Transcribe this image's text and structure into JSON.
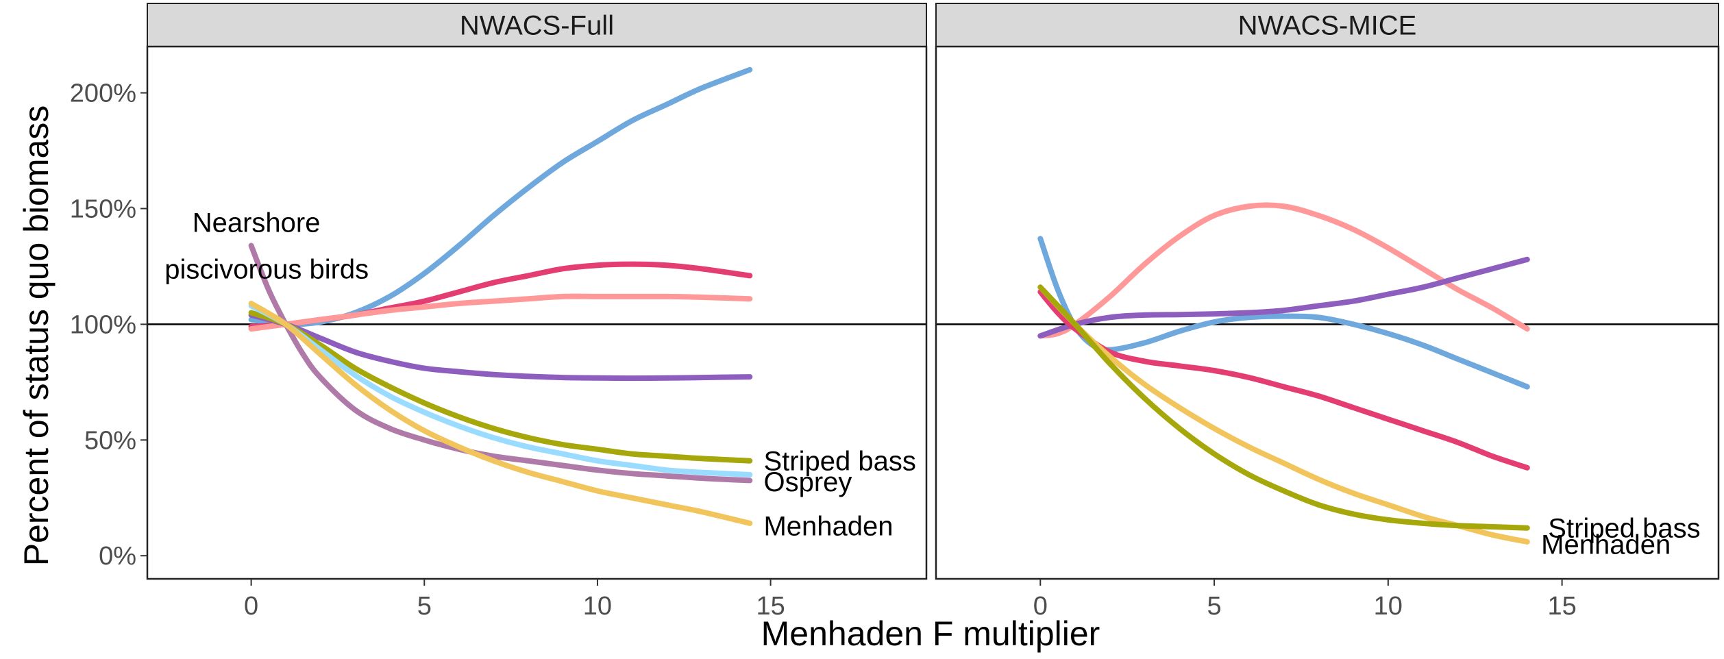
{
  "chart_data": {
    "type": "line",
    "xlabel": "Menhaden F multiplier",
    "ylabel": "Percent of status quo biomass",
    "xlim": [
      -3,
      19.5
    ],
    "ylim": [
      -0.1,
      2.2
    ],
    "x_ticks": [
      0,
      5,
      10,
      15
    ],
    "x_tick_labels": [
      "0",
      "5",
      "10",
      "15"
    ],
    "y_ticks": [
      0,
      0.5,
      1.0,
      1.5,
      2.0
    ],
    "y_tick_labels": [
      "0%",
      "50%",
      "100%",
      "150%",
      "200%"
    ],
    "reference_line_y": 1.0,
    "panels": [
      {
        "title": "NWACS-Full",
        "series": [
          {
            "color": "#6fa8dc",
            "x": [
              0,
              1,
              2,
              3,
              4,
              5,
              6,
              7,
              8,
              9,
              10,
              11,
              12,
              13,
              14.4
            ],
            "y": [
              1.02,
              1.0,
              1.01,
              1.05,
              1.12,
              1.22,
              1.34,
              1.47,
              1.59,
              1.7,
              1.79,
              1.88,
              1.95,
              2.02,
              2.1
            ]
          },
          {
            "color": "#e33d72",
            "x": [
              0,
              1,
              2,
              3,
              4,
              5,
              6,
              7,
              8,
              9,
              10,
              11,
              12,
              13,
              14.4
            ],
            "y": [
              0.99,
              1.0,
              1.02,
              1.04,
              1.07,
              1.1,
              1.14,
              1.18,
              1.21,
              1.24,
              1.255,
              1.26,
              1.255,
              1.24,
              1.21
            ]
          },
          {
            "color": "#ff9999",
            "x": [
              0,
              1,
              2,
              3,
              4,
              5,
              6,
              7,
              8,
              9,
              10,
              11,
              12,
              13,
              14.4
            ],
            "y": [
              0.98,
              1.0,
              1.02,
              1.04,
              1.06,
              1.075,
              1.09,
              1.1,
              1.11,
              1.12,
              1.12,
              1.12,
              1.12,
              1.117,
              1.11
            ]
          },
          {
            "color": "#8e5ebf",
            "x": [
              0,
              1,
              2,
              3,
              4,
              5,
              6,
              7,
              8,
              9,
              10,
              11,
              12,
              13,
              14.4
            ],
            "y": [
              1.04,
              1.0,
              0.94,
              0.88,
              0.84,
              0.81,
              0.795,
              0.783,
              0.775,
              0.77,
              0.768,
              0.767,
              0.768,
              0.77,
              0.773
            ]
          },
          {
            "color": "#a6a70a",
            "x": [
              0,
              1,
              2,
              3,
              4,
              5,
              6,
              7,
              8,
              9,
              10,
              11,
              12,
              13,
              14.4
            ],
            "y": [
              1.05,
              1.0,
              0.91,
              0.81,
              0.73,
              0.66,
              0.6,
              0.55,
              0.51,
              0.48,
              0.46,
              0.44,
              0.43,
              0.42,
              0.41
            ]
          },
          {
            "color": "#99dcff",
            "x": [
              0,
              1,
              2,
              3,
              4,
              5,
              6,
              7,
              8,
              9,
              10,
              11,
              12,
              13,
              14.4
            ],
            "y": [
              1.08,
              1.0,
              0.89,
              0.78,
              0.69,
              0.62,
              0.56,
              0.51,
              0.47,
              0.44,
              0.41,
              0.39,
              0.37,
              0.36,
              0.35
            ]
          },
          {
            "color": "#b07aa8",
            "x": [
              0,
              0.5,
              1,
              1.5,
              2,
              3,
              4,
              5,
              6,
              7,
              8,
              9,
              10,
              11,
              12,
              13,
              14.4
            ],
            "y": [
              1.34,
              1.15,
              1.0,
              0.87,
              0.77,
              0.63,
              0.55,
              0.5,
              0.46,
              0.43,
              0.41,
              0.39,
              0.37,
              0.355,
              0.345,
              0.335,
              0.325
            ]
          },
          {
            "color": "#f2c45c",
            "x": [
              0,
              1,
              2,
              3,
              4,
              5,
              6,
              7,
              8,
              9,
              10,
              11,
              12,
              13,
              14.4
            ],
            "y": [
              1.09,
              1.0,
              0.87,
              0.74,
              0.63,
              0.54,
              0.47,
              0.41,
              0.36,
              0.32,
              0.28,
              0.25,
              0.22,
              0.19,
              0.14
            ]
          }
        ],
        "labels": [
          {
            "text": "Nearshore",
            "x": -1.7,
            "y": 1.44
          },
          {
            "text": "piscivorous birds",
            "x": -2.5,
            "y": 1.24
          },
          {
            "text": "Striped bass",
            "x": 14.8,
            "y": 0.41
          },
          {
            "text": "Osprey",
            "x": 14.8,
            "y": 0.32
          },
          {
            "text": "Menhaden",
            "x": 14.8,
            "y": 0.13
          }
        ]
      },
      {
        "title": "NWACS-MICE",
        "series": [
          {
            "color": "#6fa8dc",
            "x": [
              0,
              0.5,
              1,
              1.5,
              2,
              3,
              4,
              5,
              6,
              7,
              8,
              9,
              10,
              11,
              12,
              13,
              14
            ],
            "y": [
              1.37,
              1.15,
              0.99,
              0.91,
              0.89,
              0.92,
              0.97,
              1.01,
              1.03,
              1.035,
              1.03,
              1.0,
              0.96,
              0.91,
              0.85,
              0.79,
              0.73
            ]
          },
          {
            "color": "#ff9999",
            "x": [
              0,
              0.5,
              1,
              2,
              3,
              4,
              5,
              6,
              7,
              8,
              9,
              10,
              11,
              12,
              13,
              14
            ],
            "y": [
              0.95,
              0.96,
              1.0,
              1.12,
              1.26,
              1.38,
              1.47,
              1.51,
              1.51,
              1.47,
              1.41,
              1.33,
              1.24,
              1.15,
              1.07,
              0.98
            ]
          },
          {
            "color": "#8e5ebf",
            "x": [
              0,
              1,
              2,
              3,
              4,
              5,
              6,
              7,
              8,
              9,
              10,
              11,
              12,
              13,
              14
            ],
            "y": [
              0.95,
              1.0,
              1.03,
              1.04,
              1.042,
              1.045,
              1.05,
              1.06,
              1.08,
              1.1,
              1.13,
              1.16,
              1.2,
              1.24,
              1.28
            ]
          },
          {
            "color": "#e33d72",
            "x": [
              0,
              0.5,
              1,
              2,
              3,
              4,
              5,
              6,
              7,
              8,
              9,
              10,
              11,
              12,
              13,
              14
            ],
            "y": [
              1.14,
              1.05,
              0.98,
              0.88,
              0.84,
              0.82,
              0.8,
              0.77,
              0.73,
              0.69,
              0.64,
              0.59,
              0.54,
              0.49,
              0.43,
              0.38
            ]
          },
          {
            "color": "#f2c45c",
            "x": [
              0,
              1,
              2,
              3,
              4,
              5,
              6,
              7,
              8,
              9,
              10,
              11,
              12,
              13,
              14
            ],
            "y": [
              1.16,
              1.0,
              0.86,
              0.74,
              0.64,
              0.55,
              0.47,
              0.4,
              0.33,
              0.27,
              0.22,
              0.17,
              0.13,
              0.09,
              0.06
            ]
          },
          {
            "color": "#a6a70a",
            "x": [
              0,
              1,
              2,
              3,
              4,
              5,
              6,
              7,
              8,
              9,
              10,
              11,
              12,
              13,
              14
            ],
            "y": [
              1.16,
              1.0,
              0.83,
              0.68,
              0.55,
              0.44,
              0.35,
              0.28,
              0.22,
              0.18,
              0.155,
              0.14,
              0.13,
              0.125,
              0.12
            ]
          }
        ],
        "labels": [
          {
            "text": "Striped bass",
            "x": 14.6,
            "y": 0.12
          },
          {
            "text": "Menhaden",
            "x": 14.4,
            "y": 0.05
          }
        ]
      }
    ]
  }
}
